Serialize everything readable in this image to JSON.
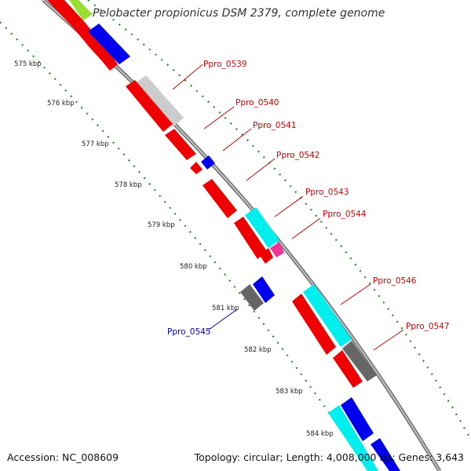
{
  "title": "Pelobacter propionicus DSM 2379, complete genome",
  "footer": {
    "accession": "Accession: NC_008609",
    "summary": "Topology: circular; Length: 4,008,000 bp; Genes: 3,643"
  },
  "colors": {
    "backbone": "#8c8c8c",
    "tick_dots": "#2a8a2a",
    "forward_label": "#cc0000",
    "reverse_label": "#0000aa",
    "red": "#ee0000",
    "blue": "#0000ee",
    "cyan": "#00eeee",
    "grey_light": "#cccccc",
    "grey_dark": "#666666",
    "magenta": "#ee3399",
    "green": "#99dd33"
  },
  "ticks": [
    "575 kbp",
    "576 kbp",
    "577 kbp",
    "578 kbp",
    "579 kbp",
    "580 kbp",
    "581 kbp",
    "582 kbp",
    "583 kbp",
    "584 kbp"
  ],
  "gene_labels": [
    {
      "text": "Ppro_0539",
      "strand": "forward"
    },
    {
      "text": "Ppro_0540",
      "strand": "forward"
    },
    {
      "text": "Ppro_0541",
      "strand": "forward"
    },
    {
      "text": "Ppro_0542",
      "strand": "forward"
    },
    {
      "text": "Ppro_0543",
      "strand": "forward"
    },
    {
      "text": "Ppro_0544",
      "strand": "forward"
    },
    {
      "text": "Ppro_0546",
      "strand": "forward"
    },
    {
      "text": "Ppro_0547",
      "strand": "forward"
    },
    {
      "text": "Ppro_0545",
      "strand": "reverse"
    }
  ]
}
